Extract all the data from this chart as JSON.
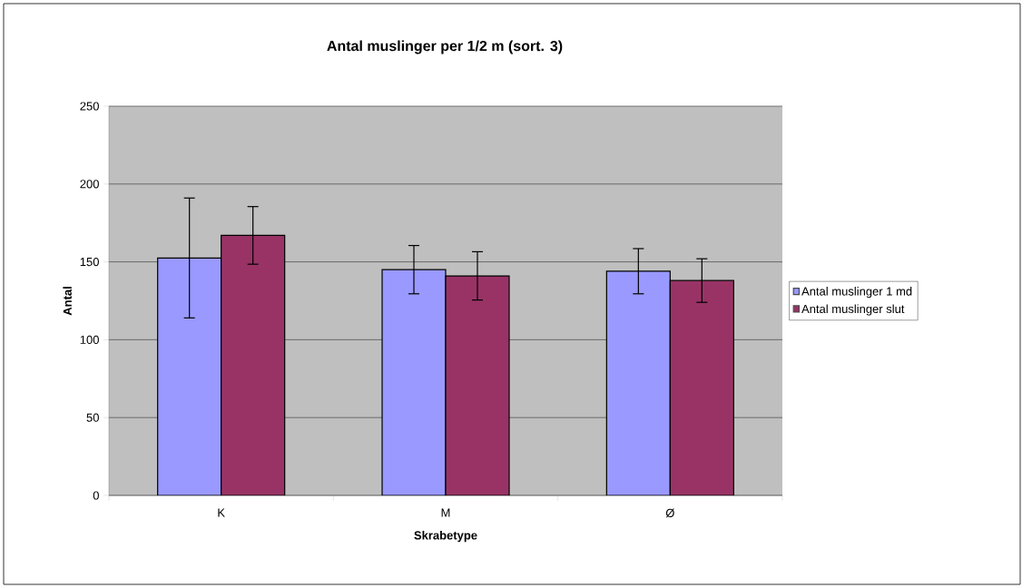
{
  "chart_data": {
    "type": "bar",
    "title": "Antal muslinger per 1/2 m (sort. 3)",
    "xlabel": "Skrabetype",
    "ylabel": "Antal",
    "categories": [
      "K",
      "M",
      "Ø"
    ],
    "series": [
      {
        "name": "Antal muslinger 1 md",
        "color": "#9999ff",
        "values": [
          152.5,
          145,
          144
        ],
        "errors": [
          38.5,
          15.5,
          14.5
        ]
      },
      {
        "name": "Antal muslinger slut",
        "color": "#993366",
        "values": [
          167,
          141,
          138
        ],
        "errors": [
          18.5,
          15.5,
          14
        ]
      }
    ],
    "ylim": [
      0,
      250
    ],
    "yticks": [
      0,
      50,
      100,
      150,
      200,
      250
    ],
    "grid": "y",
    "legend": "right"
  }
}
